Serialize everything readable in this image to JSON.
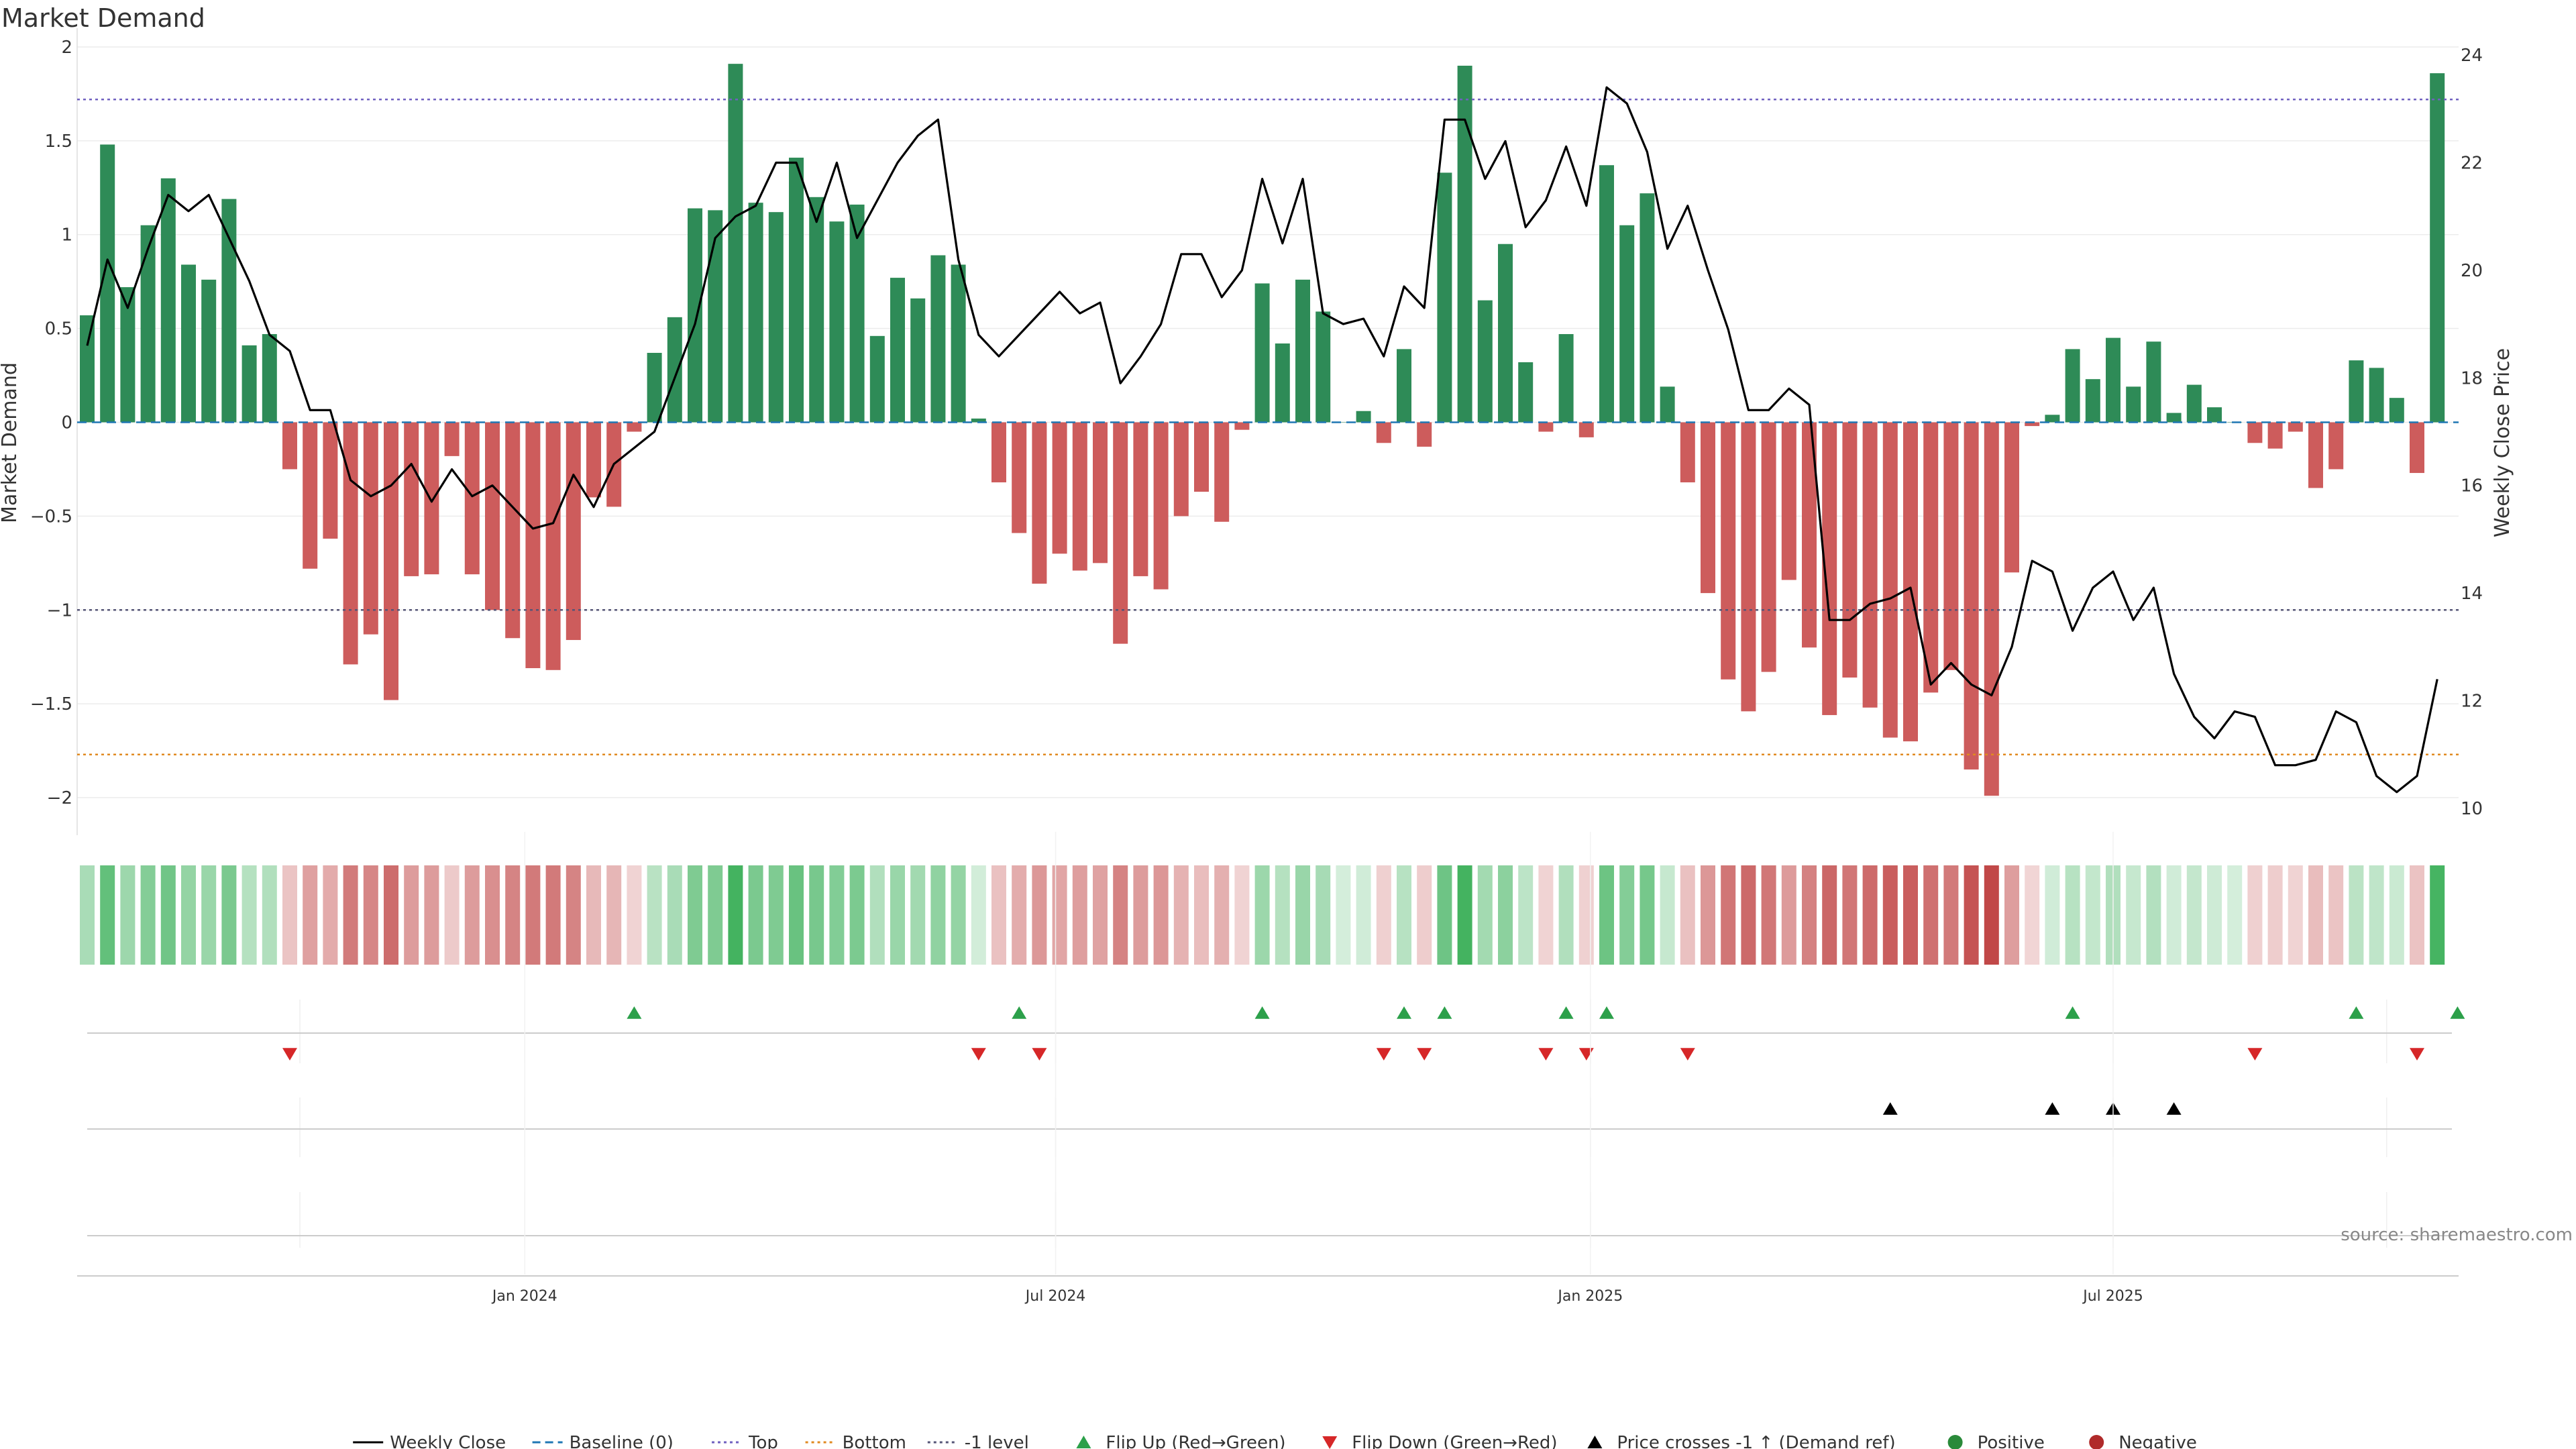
{
  "chart_data": {
    "type": "bar",
    "title": "Market Demand",
    "ylabel": "Market Demand",
    "y2label": "Weekly Close Price",
    "ylim": [
      -2.2,
      2.1
    ],
    "y2lim": [
      9.5,
      24.5
    ],
    "yticks": [
      2,
      1.5,
      1,
      0.5,
      0,
      -0.5,
      -1,
      -1.5,
      -2
    ],
    "ytick_labels": [
      "2",
      "1.5",
      "1",
      "0.5",
      "0",
      "−0.5",
      "−1",
      "−1.5",
      "−2"
    ],
    "y2ticks": [
      24,
      22,
      20,
      18,
      16,
      14,
      12,
      10
    ],
    "y2tick_labels": [
      "24",
      "22",
      "20",
      "18",
      "16",
      "14",
      "12",
      "10"
    ],
    "x_ticks": [
      {
        "label": "Jan 2024",
        "week": 21.6
      },
      {
        "label": "Jul 2024",
        "week": 47.8
      },
      {
        "label": "Jan 2025",
        "week": 74.2
      },
      {
        "label": "Jul 2025",
        "week": 100.0
      }
    ],
    "reference_lines": {
      "top": 1.72,
      "bottom": -1.77,
      "minus_one": -1.0,
      "baseline": 0
    },
    "series": [
      {
        "name": "Market Demand",
        "values": [
          0.57,
          1.48,
          0.72,
          1.05,
          1.3,
          0.84,
          0.76,
          1.19,
          0.41,
          0.47,
          -0.25,
          -0.78,
          -0.62,
          -1.29,
          -1.13,
          -1.48,
          -0.82,
          -0.81,
          -0.18,
          -0.81,
          -1.0,
          -1.15,
          -1.31,
          -1.32,
          -1.16,
          -0.4,
          -0.45,
          -0.05,
          0.37,
          0.56,
          1.14,
          1.13,
          1.91,
          1.17,
          1.12,
          1.41,
          1.2,
          1.07,
          1.16,
          0.46,
          0.77,
          0.66,
          0.89,
          0.84,
          0.02,
          -0.32,
          -0.59,
          -0.86,
          -0.7,
          -0.79,
          -0.75,
          -1.18,
          -0.82,
          -0.89,
          -0.5,
          -0.37,
          -0.53,
          -0.04,
          0.74,
          0.42,
          0.76,
          0.59,
          0.0,
          0.06,
          -0.11,
          0.39,
          -0.13,
          1.33,
          1.9,
          0.65,
          0.95,
          0.32,
          -0.05,
          0.47,
          -0.08,
          1.37,
          1.05,
          1.22,
          0.19,
          -0.32,
          -0.91,
          -1.37,
          -1.54,
          -1.33,
          -0.84,
          -1.2,
          -1.56,
          -1.36,
          -1.52,
          -1.68,
          -1.7,
          -1.44,
          -1.32,
          -1.85,
          -1.99,
          -0.8,
          -0.02,
          0.04,
          0.39,
          0.23,
          0.45,
          0.19,
          0.43,
          0.05,
          0.2,
          0.08,
          0.0,
          -0.11,
          -0.14,
          -0.05,
          -0.35,
          -0.25,
          0.33,
          0.29,
          0.13,
          -0.27,
          1.86
        ]
      },
      {
        "name": "Weekly Close",
        "values": [
          18.6,
          20.2,
          19.3,
          20.4,
          21.4,
          21.1,
          21.4,
          20.6,
          19.8,
          18.8,
          18.5,
          17.4,
          17.4,
          16.1,
          15.8,
          16.0,
          16.4,
          15.7,
          16.3,
          15.8,
          16.0,
          15.6,
          15.2,
          15.3,
          16.2,
          15.6,
          16.4,
          16.7,
          17.0,
          18.0,
          19.0,
          20.6,
          21.0,
          21.2,
          22.0,
          22.0,
          20.9,
          22.0,
          20.6,
          21.3,
          22.0,
          22.5,
          22.8,
          20.2,
          18.8,
          18.4,
          18.8,
          19.2,
          19.6,
          19.2,
          19.4,
          17.9,
          18.4,
          19.0,
          20.3,
          20.3,
          19.5,
          20.0,
          21.7,
          20.5,
          21.7,
          19.2,
          19.0,
          19.1,
          18.4,
          19.7,
          19.3,
          22.8,
          22.8,
          21.7,
          22.4,
          20.8,
          21.3,
          22.3,
          21.2,
          23.4,
          23.1,
          22.2,
          20.4,
          21.2,
          20.0,
          18.9,
          17.4,
          17.4,
          17.8,
          17.5,
          13.5,
          13.5,
          13.8,
          13.9,
          14.1,
          12.3,
          12.7,
          12.3,
          12.1,
          13.0,
          14.6,
          14.4,
          13.3,
          14.1,
          14.4,
          13.5,
          14.1,
          12.5,
          11.7,
          11.3,
          11.8,
          11.7,
          10.8,
          10.8,
          10.9,
          11.8,
          11.6,
          10.6,
          10.3,
          10.6,
          12.4
        ]
      }
    ],
    "flip_up_weeks": [
      27,
      46,
      58,
      65,
      67,
      73,
      75,
      98,
      112,
      117
    ],
    "flip_down_weeks": [
      10,
      44,
      47,
      64,
      66,
      72,
      74,
      79,
      107,
      115
    ],
    "price_cross_weeks": [
      89,
      97,
      100,
      103
    ],
    "legend_position": "bottom-center"
  },
  "legend": {
    "items": [
      {
        "label": "Weekly Close",
        "kind": "line",
        "color": "#000000"
      },
      {
        "label": "Baseline (0)",
        "kind": "dash",
        "color": "#1f77b4"
      },
      {
        "label": "Top",
        "kind": "dot",
        "color": "#7060c0"
      },
      {
        "label": "Bottom",
        "kind": "dot",
        "color": "#e08a20"
      },
      {
        "label": "-1 level",
        "kind": "dot",
        "color": "#555577"
      },
      {
        "label": "Flip Up (Red→Green)",
        "kind": "tri-up",
        "color": "#2ca04a"
      },
      {
        "label": "Flip Down (Green→Red)",
        "kind": "tri-down",
        "color": "#d62728"
      },
      {
        "label": "Price crosses -1 ↑ (Demand ref)",
        "kind": "tri-up",
        "color": "#000000"
      },
      {
        "label": "Positive",
        "kind": "circle",
        "color": "#2a8a3a"
      },
      {
        "label": "Negative",
        "kind": "circle",
        "color": "#b02a2a"
      }
    ]
  },
  "source": "source: sharemaestro.com",
  "colors": {
    "positive": "#2e8b57",
    "negative": "#cd5c5c",
    "price": "#000000"
  }
}
